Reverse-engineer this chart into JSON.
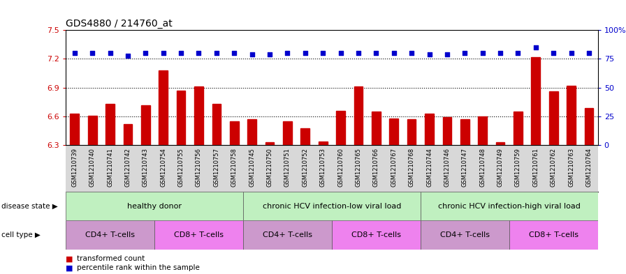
{
  "title": "GDS4880 / 214760_at",
  "sample_ids": [
    "GSM1210739",
    "GSM1210740",
    "GSM1210741",
    "GSM1210742",
    "GSM1210743",
    "GSM1210754",
    "GSM1210755",
    "GSM1210756",
    "GSM1210757",
    "GSM1210758",
    "GSM1210745",
    "GSM1210750",
    "GSM1210751",
    "GSM1210752",
    "GSM1210753",
    "GSM1210760",
    "GSM1210765",
    "GSM1210766",
    "GSM1210767",
    "GSM1210768",
    "GSM1210744",
    "GSM1210746",
    "GSM1210747",
    "GSM1210748",
    "GSM1210749",
    "GSM1210759",
    "GSM1210761",
    "GSM1210762",
    "GSM1210763",
    "GSM1210764"
  ],
  "bar_values": [
    6.63,
    6.61,
    6.73,
    6.52,
    6.72,
    7.08,
    6.87,
    6.91,
    6.73,
    6.55,
    6.57,
    6.33,
    6.55,
    6.48,
    6.34,
    6.66,
    6.91,
    6.65,
    6.58,
    6.57,
    6.63,
    6.59,
    6.57,
    6.6,
    6.33,
    6.65,
    7.22,
    6.86,
    6.92,
    6.69
  ],
  "percentile_values": [
    80,
    80,
    80,
    78,
    80,
    80,
    80,
    80,
    80,
    80,
    79,
    79,
    80,
    80,
    80,
    80,
    80,
    80,
    80,
    80,
    79,
    79,
    80,
    80,
    80,
    80,
    85,
    80,
    80,
    80
  ],
  "ylim_left": [
    6.3,
    7.5
  ],
  "ylim_right": [
    0,
    100
  ],
  "yticks_left": [
    6.3,
    6.6,
    6.9,
    7.2,
    7.5
  ],
  "ytick_labels_left": [
    "6.3",
    "6.6",
    "6.9",
    "7.2",
    "7.5"
  ],
  "yticks_right": [
    0,
    25,
    50,
    75,
    100
  ],
  "ytick_labels_right": [
    "0",
    "25",
    "50",
    "75",
    "100%"
  ],
  "hlines": [
    6.6,
    6.9,
    7.2
  ],
  "bar_color": "#cc0000",
  "dot_color": "#0000cc",
  "xtick_bg": "#d3d3d3",
  "disease_groups": [
    {
      "label": "healthy donor",
      "start": 0,
      "end": 9,
      "color": "#c0f0c0"
    },
    {
      "label": "chronic HCV infection-low viral load",
      "start": 10,
      "end": 19,
      "color": "#c0f0c0"
    },
    {
      "label": "chronic HCV infection-high viral load",
      "start": 20,
      "end": 29,
      "color": "#c0f0c0"
    }
  ],
  "cell_type_groups": [
    {
      "label": "CD4+ T-cells",
      "start": 0,
      "end": 4,
      "color": "#cc99cc"
    },
    {
      "label": "CD8+ T-cells",
      "start": 5,
      "end": 9,
      "color": "#ee82ee"
    },
    {
      "label": "CD4+ T-cells",
      "start": 10,
      "end": 14,
      "color": "#cc99cc"
    },
    {
      "label": "CD8+ T-cells",
      "start": 15,
      "end": 19,
      "color": "#ee82ee"
    },
    {
      "label": "CD4+ T-cells",
      "start": 20,
      "end": 24,
      "color": "#cc99cc"
    },
    {
      "label": "CD8+ T-cells",
      "start": 25,
      "end": 29,
      "color": "#ee82ee"
    }
  ],
  "legend_items": [
    {
      "label": "transformed count",
      "color": "#cc0000"
    },
    {
      "label": "percentile rank within the sample",
      "color": "#0000cc"
    }
  ],
  "disease_state_label": "disease state",
  "cell_type_label": "cell type"
}
